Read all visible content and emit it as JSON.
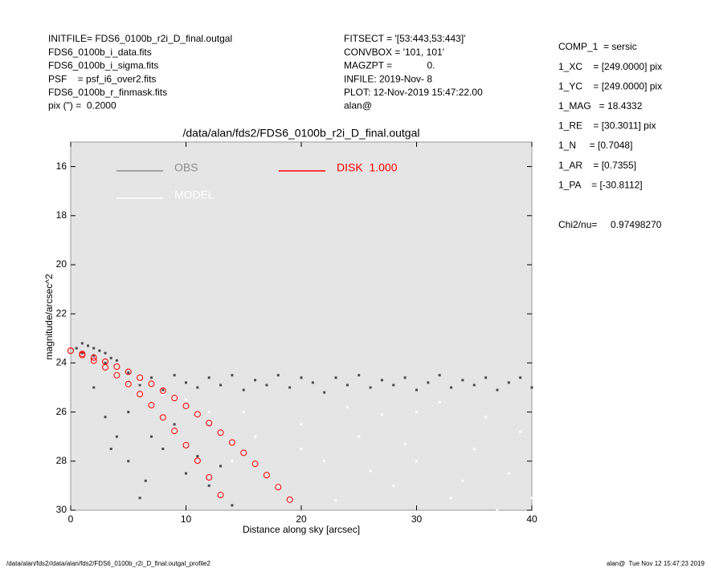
{
  "chart_data": {
    "type": "scatter",
    "title": "/data/alan/fds2/FDS6_0100b_r2i_D_final.outgal",
    "xlabel": "Distance along sky [arcsec]",
    "ylabel": "magnitude/arcsec^2",
    "xlim": [
      0,
      40
    ],
    "ylim": [
      30,
      15
    ],
    "xticks": [
      0,
      10,
      20,
      30,
      40
    ],
    "yticks": [
      16,
      18,
      20,
      22,
      24,
      26,
      28,
      30
    ],
    "info_left": [
      "INITFILE= FDS6_0100b_r2i_D_final.outgal",
      "FDS6_0100b_i_data.fits",
      "FDS6_0100b_i_sigma.fits",
      "PSF    = psf_i6_over2.fits",
      "FDS6_0100b_r_finmask.fits",
      "pix (\") =  0.2000"
    ],
    "info_center": [
      "FITSECT = '[53:443,53:443]'",
      "CONVBOX = '101, 101'",
      "MAGZPT =             0.",
      "INFILE: 2019-Nov- 8",
      "PLOT: 12-Nov-2019 15:47:22.00",
      "alan@"
    ],
    "info_right": [
      "COMP_1  = sersic",
      "1_XC    = [249.0000] pix",
      "1_YC    = [249.0000] pix",
      "1_MAG   = 18.4332",
      "1_RE    = [30.3011] pix",
      "1_N     = [0.7048]",
      "1_AR    = [0.7355]",
      "1_PA    = [-30.8112]"
    ],
    "fit_stat": "Chi2/nu=     0.97498270",
    "footer_left": "/data/alan/fds2//data/alan/fds2/FDS6_0100b_r2i_D_final.outgal_profile2",
    "footer_right": "alan@  Tue Nov 12 15:47:23 2019",
    "series": [
      {
        "name": "OBS",
        "color": "#4a4a4a",
        "legend_color": "#8c8c8c",
        "x": [
          0.5,
          1,
          1.5,
          2,
          2.5,
          3,
          3.5,
          4,
          1,
          2,
          3,
          5,
          6,
          7,
          8,
          9,
          10,
          11,
          12,
          13,
          14,
          15,
          16,
          17,
          18,
          19,
          20,
          21,
          22,
          23,
          24,
          25,
          26,
          27,
          28,
          29,
          30,
          31,
          32,
          33,
          34,
          35,
          36,
          37,
          38,
          39,
          40,
          2,
          3,
          4,
          5,
          6,
          8,
          10,
          12,
          14,
          5,
          7,
          9,
          11,
          13,
          3.5,
          6.5
        ],
        "values": [
          23.4,
          23.2,
          23.3,
          23.4,
          23.5,
          23.6,
          23.8,
          23.9,
          23.6,
          23.7,
          24,
          24.4,
          24.9,
          24.6,
          25.1,
          24.5,
          24.8,
          25,
          24.6,
          24.9,
          24.5,
          25.1,
          24.7,
          24.9,
          24.5,
          25,
          24.6,
          24.8,
          25.2,
          24.6,
          24.9,
          24.5,
          25,
          24.7,
          24.9,
          24.6,
          25.1,
          24.8,
          24.5,
          25,
          24.7,
          24.9,
          24.6,
          25.1,
          24.8,
          24.6,
          25,
          25,
          26.2,
          27,
          28,
          29.5,
          27.5,
          28.5,
          29,
          29.8,
          26,
          27,
          26.5,
          27.8,
          28.2,
          27.5,
          28.8
        ]
      },
      {
        "name": "MODEL",
        "color": "#ffffff",
        "legend_color": "#ffffff",
        "x": [
          10,
          15,
          20,
          25,
          30,
          35,
          38,
          22,
          28,
          33,
          18,
          24,
          32,
          36,
          39,
          26,
          30,
          20,
          16,
          12,
          8,
          40,
          34,
          29,
          23,
          37,
          14,
          6,
          4,
          27
        ],
        "values": [
          25.5,
          26,
          26.5,
          27,
          26,
          27.5,
          28.5,
          28,
          29,
          29.5,
          29,
          25.8,
          25.6,
          26.2,
          26.8,
          28.4,
          28,
          27.5,
          27,
          26,
          25.3,
          29.5,
          28.8,
          27.3,
          29.6,
          30,
          28,
          24.8,
          24.4,
          26.1
        ]
      },
      {
        "name": "DISK  1.000",
        "color": "#ff0000",
        "legend_color": "#ff0000",
        "x": [
          0,
          1,
          2,
          3,
          4,
          5,
          6,
          7,
          8,
          9,
          10,
          11,
          12,
          13,
          14,
          15,
          16,
          17,
          18,
          19,
          0,
          1,
          2,
          3,
          4,
          5,
          6,
          7,
          8,
          9,
          10,
          11,
          12,
          13
        ],
        "values": [
          23.5,
          23.63,
          23.78,
          23.95,
          24.15,
          24.36,
          24.6,
          24.85,
          25.13,
          25.43,
          25.75,
          26.09,
          26.45,
          26.84,
          27.24,
          27.66,
          28.11,
          28.57,
          29.06,
          29.57,
          23.5,
          23.68,
          23.91,
          24.18,
          24.5,
          24.86,
          25.27,
          25.72,
          26.22,
          26.77,
          27.35,
          27.98,
          28.66,
          29.38
        ]
      }
    ]
  }
}
